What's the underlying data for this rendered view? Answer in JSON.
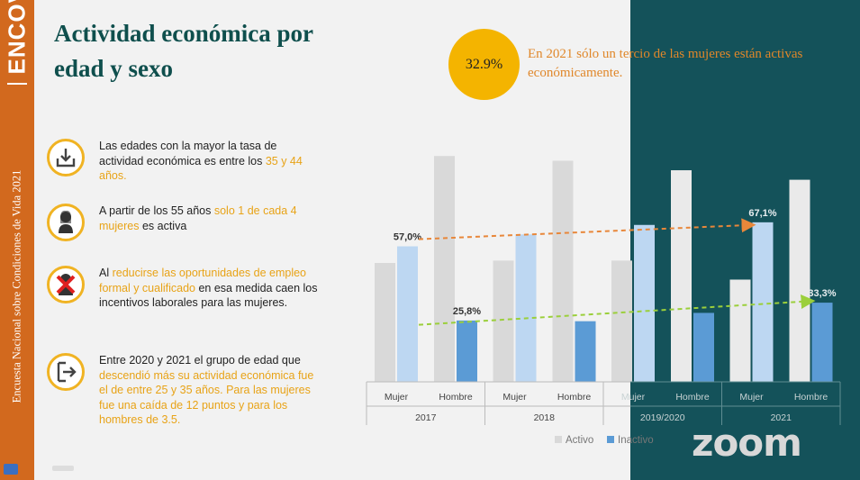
{
  "sidebar": {
    "logo": "ENCOVI",
    "vertical_text": "Encuesta Nacional sobre Condiciones de Vida 2021"
  },
  "title": "Actividad económica por edad y sexo",
  "items": [
    {
      "icon": "download-inbox-icon",
      "parts": [
        "Las edades con la mayor la tasa de actividad económica es entre los ",
        "35 y 44 años."
      ]
    },
    {
      "icon": "woman-icon",
      "parts": [
        "A partir de los 55 años ",
        "solo 1 de cada 4 mujeres",
        " es activa"
      ]
    },
    {
      "icon": "woman-crossed-icon",
      "parts": [
        "Al ",
        "reducirse las oportunidades de empleo formal y cualificado",
        " en esa medida caen los incentivos laborales para las mujeres."
      ]
    },
    {
      "icon": "exit-door-icon",
      "parts": [
        "Entre 2020 y 2021 el grupo de edad que ",
        "descendió más su actividad económica fue el de entre 25 y 35 años. Para las mujeres fue una caída de 12 puntos y para los hombres de 3.5."
      ]
    }
  ],
  "highlight": {
    "value": "32.9%",
    "text": "En 2021 sólo un tercio de las mujeres están activas económicamente."
  },
  "chart_data": {
    "type": "bar",
    "groups": [
      "2017",
      "2018",
      "2019/2020",
      "2021"
    ],
    "subcategories": [
      "Mujer",
      "Hombre"
    ],
    "series": [
      {
        "name": "Activo",
        "values": [
          [
            50,
            95
          ],
          [
            51,
            93
          ],
          [
            51,
            89
          ],
          [
            43,
            85
          ]
        ]
      },
      {
        "name": "Inactivo",
        "values": [
          [
            57,
            25.8
          ],
          [
            62,
            25.5
          ],
          [
            66,
            29
          ],
          [
            67.1,
            33.3
          ]
        ]
      }
    ],
    "data_labels": [
      {
        "group": "2017",
        "sub": "Mujer",
        "series": "Inactivo",
        "label": "57,0%"
      },
      {
        "group": "2017",
        "sub": "Hombre",
        "series": "Inactivo",
        "label": "25,8%"
      },
      {
        "group": "2021",
        "sub": "Mujer",
        "series": "Inactivo",
        "label": "67,1%"
      },
      {
        "group": "2021",
        "sub": "Hombre",
        "series": "Inactivo",
        "label": "33,3%"
      }
    ],
    "trend_arrows": [
      {
        "color": "#e8873a",
        "from": [
          "2017",
          "Mujer",
          60
        ],
        "to": [
          "2021",
          "Mujer",
          66
        ]
      },
      {
        "color": "#9bcf3b",
        "from": [
          "2017",
          "Mujer",
          24
        ],
        "to": [
          "2021",
          "Hombre",
          34
        ]
      }
    ],
    "ylim": [
      0,
      100
    ],
    "legend": "bottom",
    "colors": {
      "Activo": "#d9d9d9",
      "Inactivo_Mujer": "#bdd7f2",
      "Inactivo_Hombre": "#5b9bd5"
    }
  },
  "watermark": "zoom"
}
